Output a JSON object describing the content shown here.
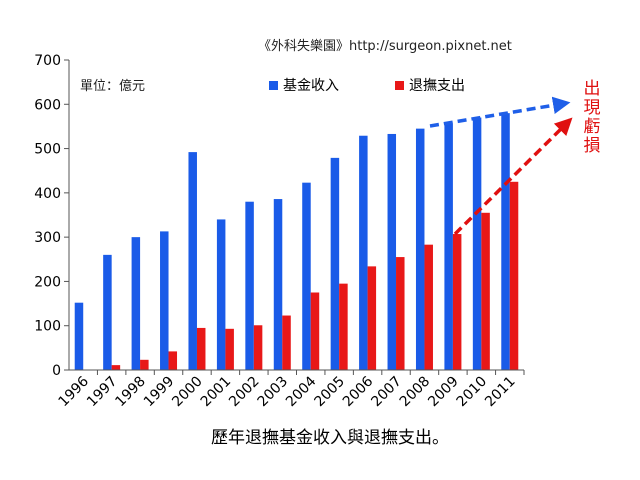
{
  "source_text": "《外科失樂園》http://surgeon.pixnet.net",
  "unit_label": "單位：億元",
  "caption": "歷年退撫基金收入與退撫支出。",
  "annotation": [
    "出",
    "現",
    "虧",
    "損"
  ],
  "colors": {
    "income": "#1a5be8",
    "expense": "#e81818",
    "trend_blue": "#1f5fe8",
    "trend_red": "#e01010"
  },
  "chart_data": {
    "type": "bar",
    "categories": [
      "1996",
      "1997",
      "1998",
      "1999",
      "2000",
      "2001",
      "2002",
      "2003",
      "2004",
      "2005",
      "2006",
      "2007",
      "2008",
      "2009",
      "2010",
      "2011"
    ],
    "series": [
      {
        "name": "基金收入",
        "values": [
          152,
          260,
          300,
          313,
          492,
          340,
          380,
          386,
          423,
          479,
          529,
          533,
          545,
          556,
          570,
          580
        ]
      },
      {
        "name": "退撫支出",
        "values": [
          0,
          11,
          23,
          42,
          95,
          93,
          101,
          123,
          175,
          195,
          234,
          255,
          283,
          307,
          355,
          425
        ]
      }
    ],
    "ylim": [
      0,
      700
    ],
    "yticks": [
      0,
      100,
      200,
      300,
      400,
      500,
      600,
      700
    ],
    "grid": false,
    "legend": "top-center",
    "title": "",
    "xlabel": "",
    "ylabel": ""
  }
}
